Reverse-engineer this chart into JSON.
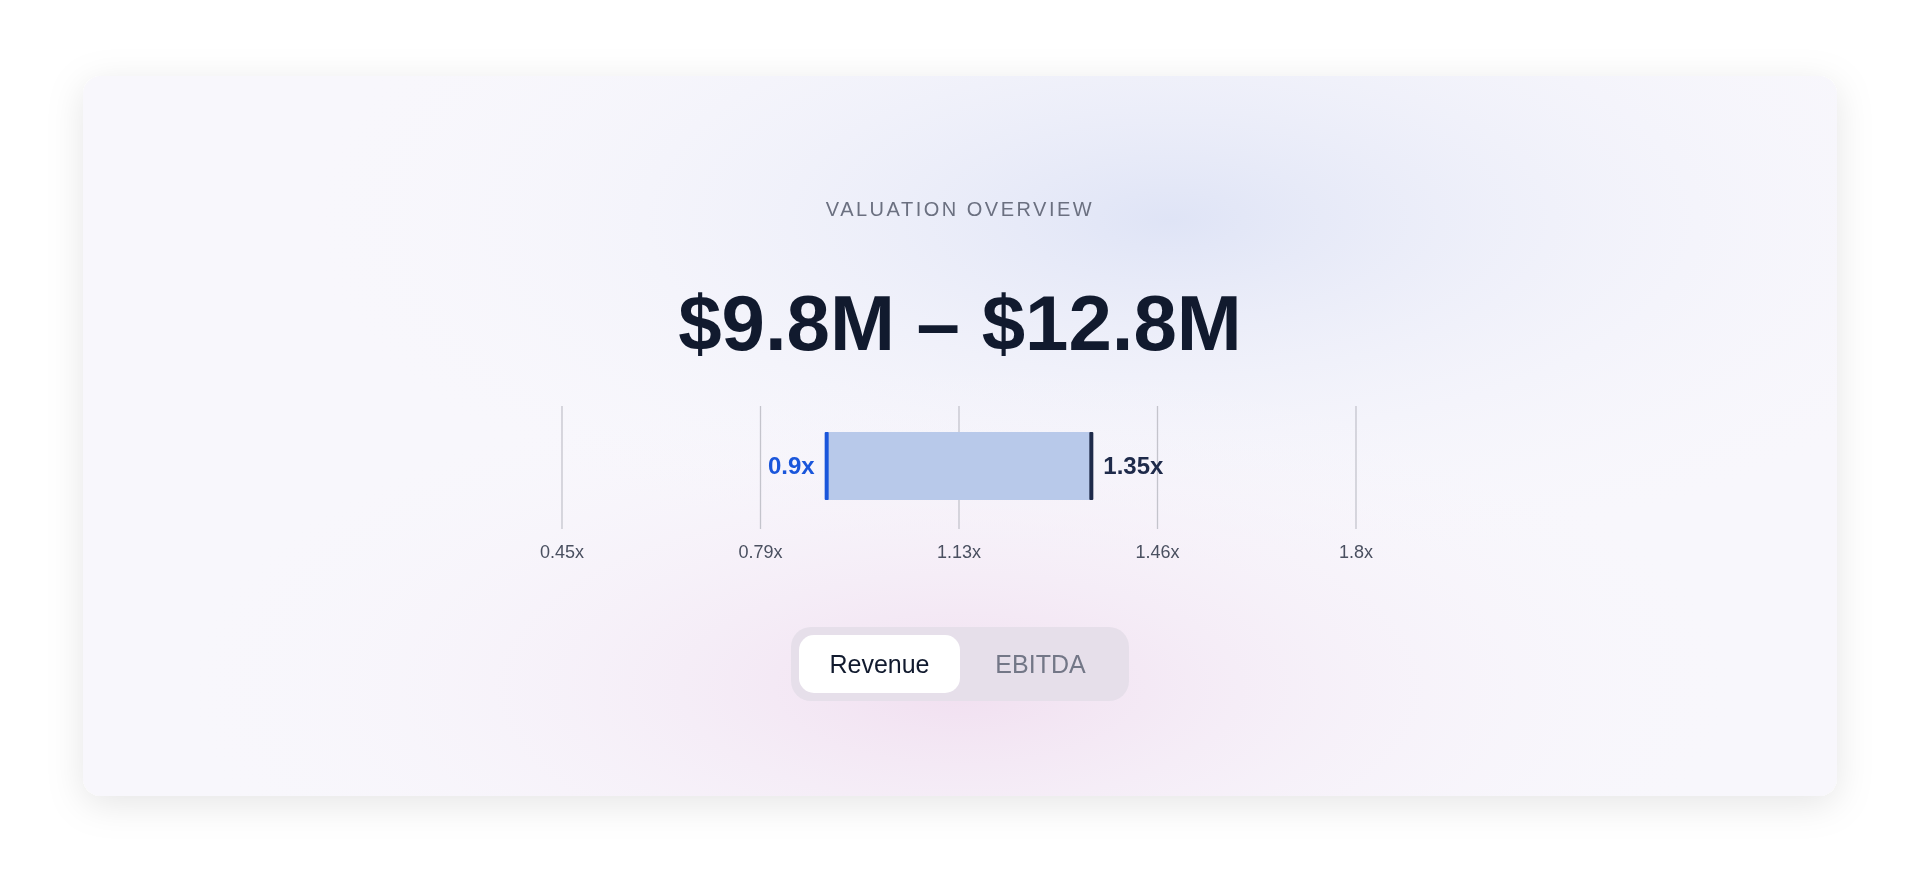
{
  "chart_data": {
    "type": "bar",
    "orientation": "horizontal",
    "title": "VALUATION OVERVIEW",
    "subtitle": "$9.8M – $12.8M",
    "categories": [
      null
    ],
    "base": [
      0.9
    ],
    "values": [
      0.45
    ],
    "color": "#b8c9ea",
    "xlim": [
      0.45,
      1.8
    ],
    "xticks": [
      {
        "value": 0.45,
        "label": "0.45x"
      },
      {
        "value": 0.7875,
        "label": "0.79x"
      },
      {
        "value": 1.125,
        "label": "1.13x"
      },
      {
        "value": 1.4625,
        "label": "1.46x"
      },
      {
        "value": 1.8,
        "label": "1.8x"
      }
    ],
    "grid": "x",
    "annotations": [
      {
        "text": "0.9x",
        "x": 0.9
      },
      {
        "text": "1.35x",
        "x": 1.35
      },
      "Revenue",
      "EBITDA"
    ]
  }
}
